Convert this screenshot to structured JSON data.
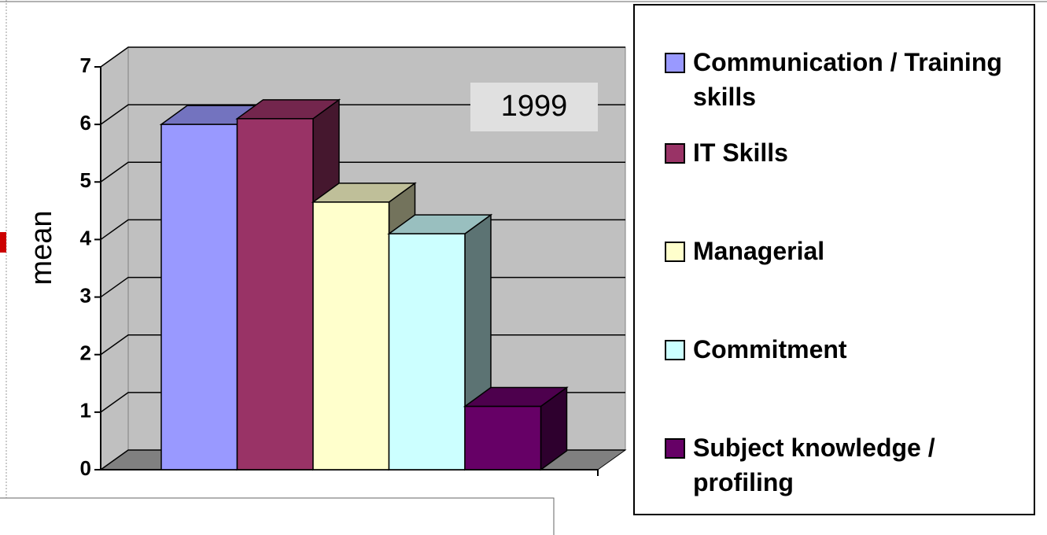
{
  "chart_data": {
    "type": "bar3d",
    "ylabel": "mean",
    "annotation": "1999",
    "categories": [
      null
    ],
    "series": [
      {
        "name": "Communication / Training skills",
        "color": "#9999ff",
        "values": [
          6.0
        ]
      },
      {
        "name": "IT Skills",
        "color": "#993366",
        "values": [
          6.1
        ]
      },
      {
        "name": "Managerial",
        "color": "#ffffcc",
        "values": [
          4.65
        ]
      },
      {
        "name": "Commitment",
        "color": "#ccffff",
        "values": [
          4.1
        ]
      },
      {
        "name": "Subject knowledge / profiling",
        "color": "#660066",
        "values": [
          1.1
        ]
      }
    ],
    "ylim": [
      0,
      7
    ],
    "yticks": [
      0,
      1,
      2,
      3,
      4,
      5,
      6,
      7
    ],
    "grid": true,
    "legend": "right"
  }
}
